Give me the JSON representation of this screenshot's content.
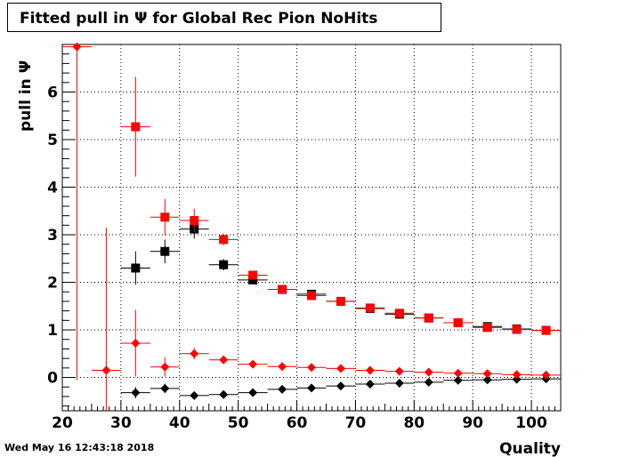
{
  "title": "Fitted pull in  Ψ  for Global Rec Pion NoHits",
  "footer_date": "Wed May 16 12:43:18 2018",
  "chart_data": {
    "type": "scatter",
    "title": "Fitted pull in  Ψ  for Global Rec Pion NoHits",
    "xlabel": "Quality",
    "ylabel": "pull in  Ψ",
    "xlim": [
      20,
      105
    ],
    "ylim": [
      -0.7,
      7.0
    ],
    "grid": true,
    "xticks": [
      20,
      30,
      40,
      50,
      60,
      70,
      80,
      90,
      100
    ],
    "yticks": [
      0,
      1,
      2,
      3,
      4,
      5,
      6
    ],
    "series": [
      {
        "marker": "square",
        "color": "#000000",
        "points": [
          {
            "x": 32.5,
            "y": 2.3,
            "xerr": 2.5,
            "yerr": 0.35
          },
          {
            "x": 37.5,
            "y": 2.65,
            "xerr": 2.5,
            "yerr": 0.25
          },
          {
            "x": 42.5,
            "y": 3.12,
            "xerr": 2.5,
            "yerr": 0.2
          },
          {
            "x": 47.5,
            "y": 2.37,
            "xerr": 2.5,
            "yerr": 0.12
          },
          {
            "x": 52.5,
            "y": 2.05,
            "xerr": 2.5,
            "yerr": 0.06
          },
          {
            "x": 57.5,
            "y": 1.85,
            "xerr": 2.5,
            "yerr": 0.04
          },
          {
            "x": 62.5,
            "y": 1.75,
            "xerr": 2.5,
            "yerr": 0.04
          },
          {
            "x": 67.5,
            "y": 1.6,
            "xerr": 2.5,
            "yerr": 0.03
          },
          {
            "x": 72.5,
            "y": 1.45,
            "xerr": 2.5,
            "yerr": 0.03
          },
          {
            "x": 77.5,
            "y": 1.33,
            "xerr": 2.5,
            "yerr": 0.03
          },
          {
            "x": 82.5,
            "y": 1.25,
            "xerr": 2.5,
            "yerr": 0.02
          },
          {
            "x": 87.5,
            "y": 1.15,
            "xerr": 2.5,
            "yerr": 0.02
          },
          {
            "x": 92.5,
            "y": 1.07,
            "xerr": 2.5,
            "yerr": 0.02
          },
          {
            "x": 97.5,
            "y": 1.02,
            "xerr": 2.5,
            "yerr": 0.02
          },
          {
            "x": 102.5,
            "y": 0.99,
            "xerr": 2.5,
            "yerr": 0.02
          }
        ]
      },
      {
        "marker": "square",
        "color": "#ff0000",
        "points": [
          {
            "x": 32.5,
            "y": 5.27,
            "xerr": 2.5,
            "yerr": 1.05
          },
          {
            "x": 37.5,
            "y": 3.37,
            "xerr": 2.5,
            "yerr": 0.38
          },
          {
            "x": 42.5,
            "y": 3.3,
            "xerr": 2.5,
            "yerr": 0.25
          },
          {
            "x": 47.5,
            "y": 2.9,
            "xerr": 2.5,
            "yerr": 0.12
          },
          {
            "x": 52.5,
            "y": 2.15,
            "xerr": 2.5,
            "yerr": 0.07
          },
          {
            "x": 57.5,
            "y": 1.85,
            "xerr": 2.5,
            "yerr": 0.05
          },
          {
            "x": 62.5,
            "y": 1.72,
            "xerr": 2.5,
            "yerr": 0.04
          },
          {
            "x": 67.5,
            "y": 1.6,
            "xerr": 2.5,
            "yerr": 0.03
          },
          {
            "x": 72.5,
            "y": 1.46,
            "xerr": 2.5,
            "yerr": 0.03
          },
          {
            "x": 77.5,
            "y": 1.35,
            "xerr": 2.5,
            "yerr": 0.03
          },
          {
            "x": 82.5,
            "y": 1.25,
            "xerr": 2.5,
            "yerr": 0.02
          },
          {
            "x": 87.5,
            "y": 1.15,
            "xerr": 2.5,
            "yerr": 0.02
          },
          {
            "x": 92.5,
            "y": 1.05,
            "xerr": 2.5,
            "yerr": 0.02
          },
          {
            "x": 97.5,
            "y": 1.01,
            "xerr": 2.5,
            "yerr": 0.02
          },
          {
            "x": 102.5,
            "y": 0.99,
            "xerr": 2.5,
            "yerr": 0.02
          }
        ]
      },
      {
        "marker": "diamond",
        "color": "#000000",
        "points": [
          {
            "x": 32.5,
            "y": -0.32,
            "xerr": 2.5,
            "yerr": 0.12
          },
          {
            "x": 37.5,
            "y": -0.23,
            "xerr": 2.5,
            "yerr": 0.1
          },
          {
            "x": 42.5,
            "y": -0.38,
            "xerr": 2.5,
            "yerr": 0.07
          },
          {
            "x": 47.5,
            "y": -0.36,
            "xerr": 2.5,
            "yerr": 0.05
          },
          {
            "x": 52.5,
            "y": -0.32,
            "xerr": 2.5,
            "yerr": 0.03
          },
          {
            "x": 57.5,
            "y": -0.25,
            "xerr": 2.5,
            "yerr": 0.03
          },
          {
            "x": 62.5,
            "y": -0.22,
            "xerr": 2.5,
            "yerr": 0.02
          },
          {
            "x": 67.5,
            "y": -0.18,
            "xerr": 2.5,
            "yerr": 0.02
          },
          {
            "x": 72.5,
            "y": -0.14,
            "xerr": 2.5,
            "yerr": 0.02
          },
          {
            "x": 77.5,
            "y": -0.12,
            "xerr": 2.5,
            "yerr": 0.02
          },
          {
            "x": 82.5,
            "y": -0.1,
            "xerr": 2.5,
            "yerr": 0.02
          },
          {
            "x": 87.5,
            "y": -0.06,
            "xerr": 2.5,
            "yerr": 0.02
          },
          {
            "x": 92.5,
            "y": -0.05,
            "xerr": 2.5,
            "yerr": 0.02
          },
          {
            "x": 97.5,
            "y": -0.04,
            "xerr": 2.5,
            "yerr": 0.02
          },
          {
            "x": 102.5,
            "y": -0.03,
            "xerr": 2.5,
            "yerr": 0.02
          }
        ]
      },
      {
        "marker": "diamond",
        "color": "#ff0000",
        "points": [
          {
            "x": 22.5,
            "y": 6.95,
            "xerr": 2.5,
            "yerr": 7.0
          },
          {
            "x": 27.5,
            "y": 0.15,
            "xerr": 2.5,
            "yerr": 3.0
          },
          {
            "x": 32.5,
            "y": 0.72,
            "xerr": 2.5,
            "yerr": 0.7
          },
          {
            "x": 37.5,
            "y": 0.22,
            "xerr": 2.5,
            "yerr": 0.2
          },
          {
            "x": 42.5,
            "y": 0.5,
            "xerr": 2.5,
            "yerr": 0.12
          },
          {
            "x": 47.5,
            "y": 0.37,
            "xerr": 2.5,
            "yerr": 0.06
          },
          {
            "x": 52.5,
            "y": 0.28,
            "xerr": 2.5,
            "yerr": 0.04
          },
          {
            "x": 57.5,
            "y": 0.23,
            "xerr": 2.5,
            "yerr": 0.03
          },
          {
            "x": 62.5,
            "y": 0.21,
            "xerr": 2.5,
            "yerr": 0.03
          },
          {
            "x": 67.5,
            "y": 0.19,
            "xerr": 2.5,
            "yerr": 0.02
          },
          {
            "x": 72.5,
            "y": 0.15,
            "xerr": 2.5,
            "yerr": 0.02
          },
          {
            "x": 77.5,
            "y": 0.13,
            "xerr": 2.5,
            "yerr": 0.02
          },
          {
            "x": 82.5,
            "y": 0.11,
            "xerr": 2.5,
            "yerr": 0.02
          },
          {
            "x": 87.5,
            "y": 0.09,
            "xerr": 2.5,
            "yerr": 0.02
          },
          {
            "x": 92.5,
            "y": 0.08,
            "xerr": 2.5,
            "yerr": 0.02
          },
          {
            "x": 97.5,
            "y": 0.06,
            "xerr": 2.5,
            "yerr": 0.02
          },
          {
            "x": 102.5,
            "y": 0.05,
            "xerr": 2.5,
            "yerr": 0.02
          }
        ]
      }
    ]
  }
}
